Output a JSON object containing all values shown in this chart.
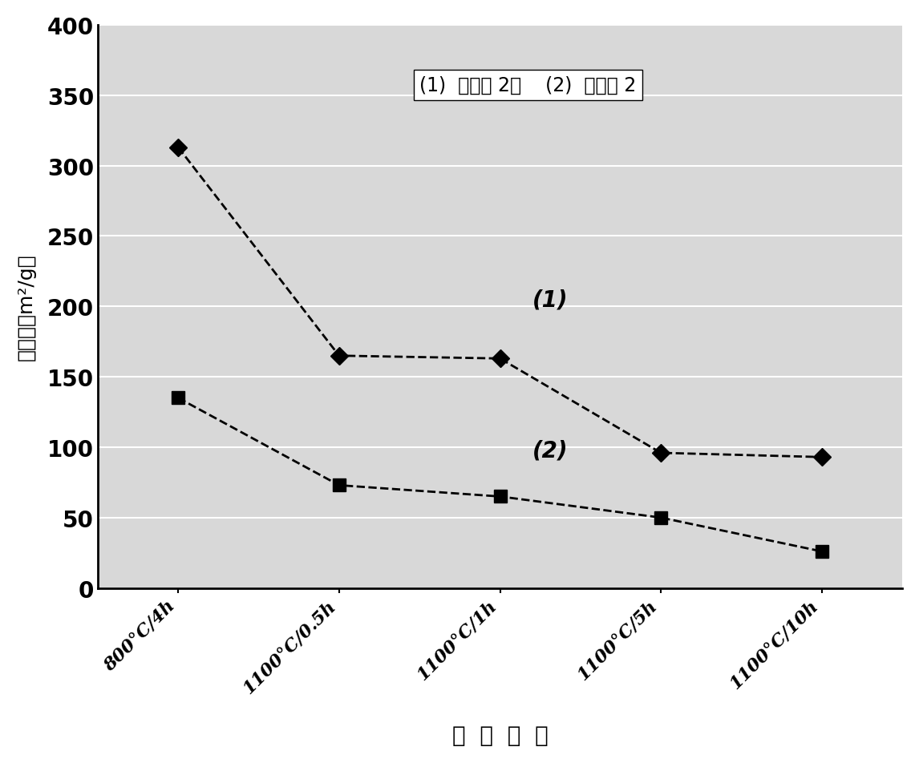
{
  "series1_y": [
    313,
    165,
    163,
    96,
    93
  ],
  "series2_y": [
    135,
    73,
    65,
    50,
    26
  ],
  "x_labels": [
    "800°C/4h",
    "1100°C/0.5h",
    "1100°C/1h",
    "1100°C/5h",
    "1100°C/10h"
  ],
  "ylabel": "比表面（m²/g）",
  "xlabel": "焙  烧  温  度",
  "ylim": [
    0,
    400
  ],
  "yticks": [
    0,
    50,
    100,
    150,
    200,
    250,
    300,
    350,
    400
  ],
  "annotation_text": "(1)  实施例 2；    (2)  对比例 2",
  "label1": "(1)",
  "label2": "(2)",
  "line_color": "#000000",
  "marker1": "D",
  "marker2": "s",
  "marker_color": "#000000",
  "bg_color": "#ffffff",
  "plot_bg_color": "#d8d8d8",
  "grid_color": "#ffffff",
  "figsize": [
    11.46,
    9.53
  ],
  "dpi": 100
}
